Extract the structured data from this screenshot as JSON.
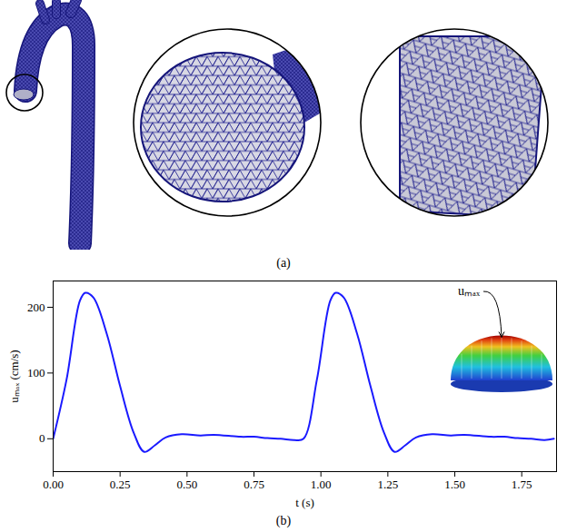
{
  "chart_data": {
    "type": "line",
    "panel_labels": [
      "(a)",
      "(b)"
    ],
    "xlabel": "t (s)",
    "ylabel": "uₘₐₓ (cm/s)",
    "annotation": "uₘₐₓ",
    "x": [
      0,
      0.05,
      0.1,
      0.12,
      0.15,
      0.2,
      0.25,
      0.3,
      0.34,
      0.38,
      0.42,
      0.48,
      0.55,
      0.6,
      0.7,
      0.75,
      0.8,
      0.85,
      0.9,
      0.935,
      0.985,
      1.035,
      1.055,
      1.085,
      1.135,
      1.185,
      1.235,
      1.275,
      1.315,
      1.355,
      1.415,
      1.485,
      1.535,
      1.635,
      1.685,
      1.735,
      1.785,
      1.835,
      1.87
    ],
    "series": [
      {
        "name": "uₘₐₓ",
        "color": "#1a1aff",
        "values": [
          0,
          90,
          210,
          222,
          215,
          160,
          80,
          10,
          -20,
          -10,
          2,
          7,
          5,
          6,
          3,
          3,
          1,
          0,
          -2,
          0,
          90,
          210,
          222,
          215,
          160,
          80,
          10,
          -20,
          -10,
          2,
          7,
          5,
          6,
          3,
          3,
          1,
          0,
          -2,
          0
        ]
      }
    ],
    "xlim": [
      0,
      1.88
    ],
    "ylim": [
      -50,
      240
    ],
    "xticks": [
      {
        "value": 0,
        "label": "0.00"
      },
      {
        "value": 0.25,
        "label": "0.25"
      },
      {
        "value": 0.5,
        "label": "0.50"
      },
      {
        "value": 0.75,
        "label": "0.75"
      },
      {
        "value": 1,
        "label": "1.00"
      },
      {
        "value": 1.25,
        "label": "1.25"
      },
      {
        "value": 1.5,
        "label": "1.50"
      },
      {
        "value": 1.75,
        "label": "1.75"
      }
    ],
    "yticks": [
      0,
      100,
      200
    ],
    "grid": false
  }
}
